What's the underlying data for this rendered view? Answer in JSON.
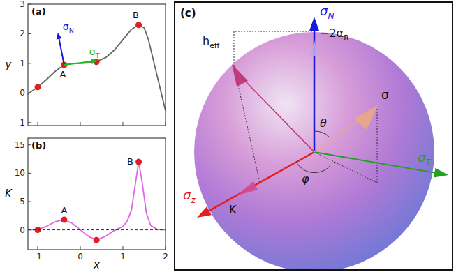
{
  "chart_data": [
    {
      "type": "line",
      "title": "(a)",
      "y_label": "y",
      "x": [
        -1.23,
        -1.2,
        -1.0,
        -0.8,
        -0.6,
        -0.4,
        -0.2,
        0,
        0.2,
        0.4,
        0.6,
        0.8,
        1.0,
        1.2,
        1.37,
        1.5,
        1.6,
        1.7,
        1.8,
        1.9,
        2.0
      ],
      "series": [
        {
          "color": "#666666",
          "values": [
            -0.05,
            0.0,
            0.2,
            0.45,
            0.72,
            0.93,
            1.0,
            1.0,
            1.02,
            1.07,
            1.2,
            1.45,
            1.8,
            2.15,
            2.3,
            2.2,
            1.8,
            1.2,
            0.6,
            0.0,
            -0.6
          ]
        },
        {
          "type": "scatter",
          "marker": "circle",
          "color": "#e02020",
          "x": [
            -1,
            -0.38,
            0.38,
            1.37
          ],
          "values": [
            0.2,
            0.95,
            1.05,
            2.3
          ]
        }
      ],
      "annotations": [
        {
          "text": "A",
          "x": -0.38,
          "y": 0.95
        },
        {
          "text": "B",
          "x": 1.37,
          "y": 2.3
        }
      ],
      "vectors": [
        {
          "base": "σ",
          "sub": "N",
          "color": "#1a1adf"
        },
        {
          "base": "σ",
          "sub": "T",
          "color": "#22b822"
        }
      ],
      "xlim": [
        -1.23,
        2
      ],
      "xticks": [
        -1,
        0,
        1,
        2
      ],
      "ylim": [
        -1.1,
        3
      ],
      "yticks": [
        -1,
        0,
        1,
        2,
        3
      ],
      "tick_labels": "y"
    },
    {
      "type": "line",
      "title": "(b)",
      "x_label": "x",
      "y_label": "K",
      "x": [
        -1.23,
        -1.2,
        -1.0,
        -0.8,
        -0.6,
        -0.4,
        -0.2,
        0,
        0.2,
        0.38,
        0.6,
        0.8,
        1.0,
        1.1,
        1.2,
        1.3,
        1.37,
        1.45,
        1.55,
        1.65,
        1.8,
        2.0
      ],
      "series": [
        {
          "color": "#e066e6",
          "values": [
            0,
            0,
            0.05,
            0.6,
            1.4,
            1.8,
            1.2,
            0,
            -1.2,
            -1.8,
            -1.1,
            -0.1,
            0.6,
            1.5,
            3.5,
            8.5,
            12,
            8.5,
            3,
            0.8,
            0.1,
            0
          ]
        },
        {
          "type": "scatter",
          "marker": "circle",
          "color": "#e02020",
          "x": [
            -1,
            -0.38,
            0.38,
            1.37
          ],
          "values": [
            0,
            1.8,
            -1.8,
            12
          ]
        },
        {
          "line_style": "dashed",
          "color": "#333333",
          "x": [
            -1.23,
            2
          ],
          "values": [
            0,
            0
          ]
        }
      ],
      "annotations": [
        {
          "text": "A",
          "x": -0.38,
          "y": 1.8
        },
        {
          "text": "B",
          "x": 1.37,
          "y": 12
        }
      ],
      "xlim": [
        -1.23,
        2
      ],
      "xticks": [
        -1,
        0,
        1,
        2
      ],
      "ylim": [
        -3.5,
        16.2
      ],
      "yticks": [
        0,
        5,
        10,
        15
      ],
      "tick_labels": true
    }
  ],
  "diagram": {
    "label": "(c)",
    "axes": {
      "sigma_N": {
        "base": "σ",
        "sub": "N",
        "color": "#1a1adf"
      },
      "sigma_T": {
        "base": "σ",
        "sub": "T",
        "color": "#22a022"
      },
      "sigma_z": {
        "base": "σ",
        "sub": "z",
        "color": "#e02020"
      }
    },
    "vectors": {
      "h_eff": {
        "base": "h",
        "sub": "eff",
        "color": "#c03070"
      },
      "sigma": {
        "base": "σ",
        "color": "#e8a888"
      },
      "K": {
        "base": "K",
        "color": "#d04a90"
      }
    },
    "projection": {
      "base": "−2α",
      "sub": "R"
    },
    "angles": {
      "theta": "θ",
      "phi": "φ"
    }
  }
}
